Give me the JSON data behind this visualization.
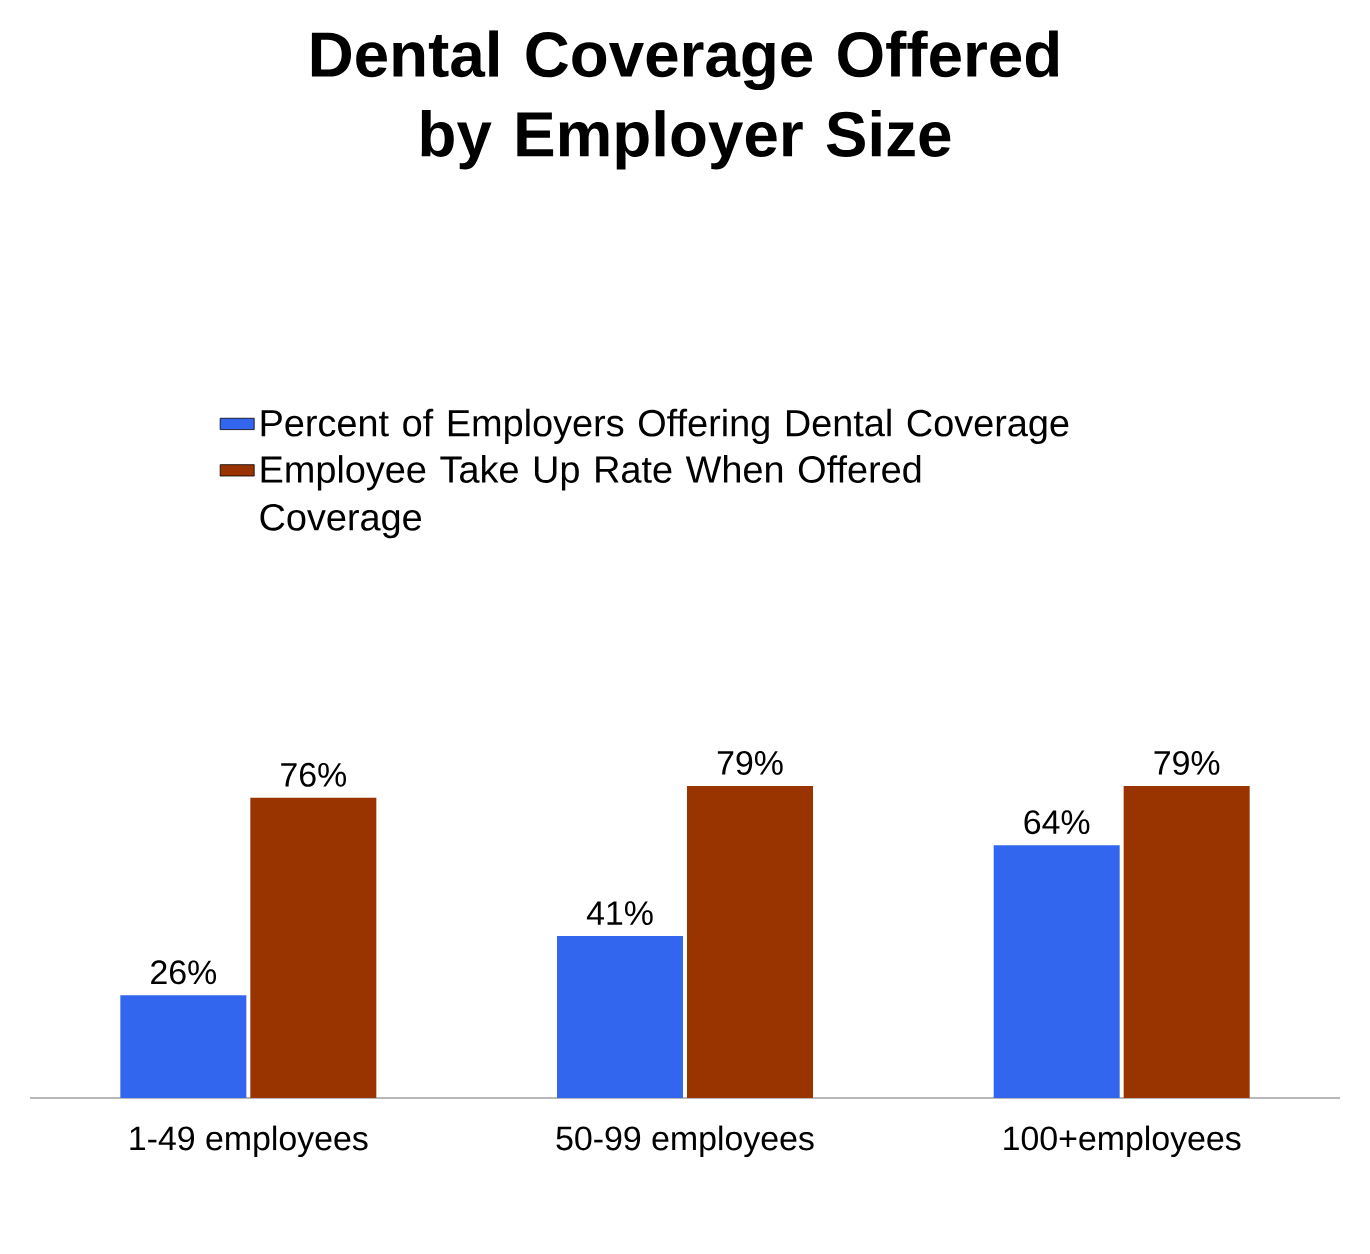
{
  "chart_data": {
    "type": "bar",
    "title": "Dental Coverage Offered by Employer Size",
    "categories": [
      "1-49 employees",
      "50-99 employees",
      "100+employees"
    ],
    "series": [
      {
        "name": "Percent of Employers Offering Dental Coverage",
        "color": "#3366ee",
        "values": [
          26,
          41,
          64
        ],
        "value_labels": [
          "26%",
          "41%",
          "64%"
        ]
      },
      {
        "name": "Employee Take Up Rate When Offered Coverage",
        "color": "#993300",
        "values": [
          76,
          79,
          79
        ],
        "value_labels": [
          "76%",
          "79%",
          "79%"
        ]
      }
    ],
    "legend": "top"
  }
}
